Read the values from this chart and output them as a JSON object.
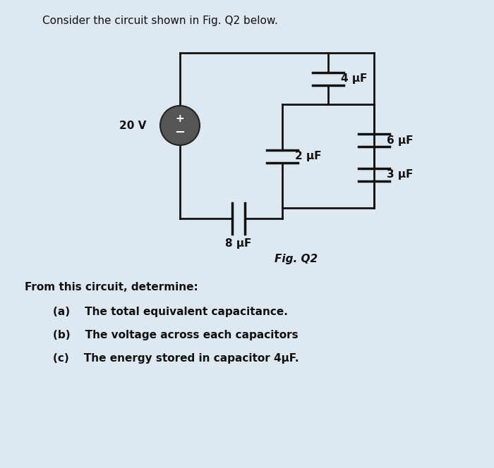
{
  "title": "Consider the circuit shown in Fig. Q2 below.",
  "fig_label": "Fig. Q2",
  "background_color": "#dde8f0",
  "wire_color": "#111111",
  "cap_color": "#111111",
  "text_color": "#111111",
  "src_fill": "#555555",
  "questions_header": "From this circuit, determine:",
  "q_a": "(a)    The total equivalent capacitance.",
  "q_b": "(b)    The voltage across each capacitors",
  "q_c": "(c)    The energy stored in capacitor 4μF.",
  "label_20V": "20 V",
  "label_4uF": "4 μF",
  "label_2uF": "2 μF",
  "label_6uF": "6 μF",
  "label_3uF": "3 μF",
  "label_8uF": "8 μF"
}
